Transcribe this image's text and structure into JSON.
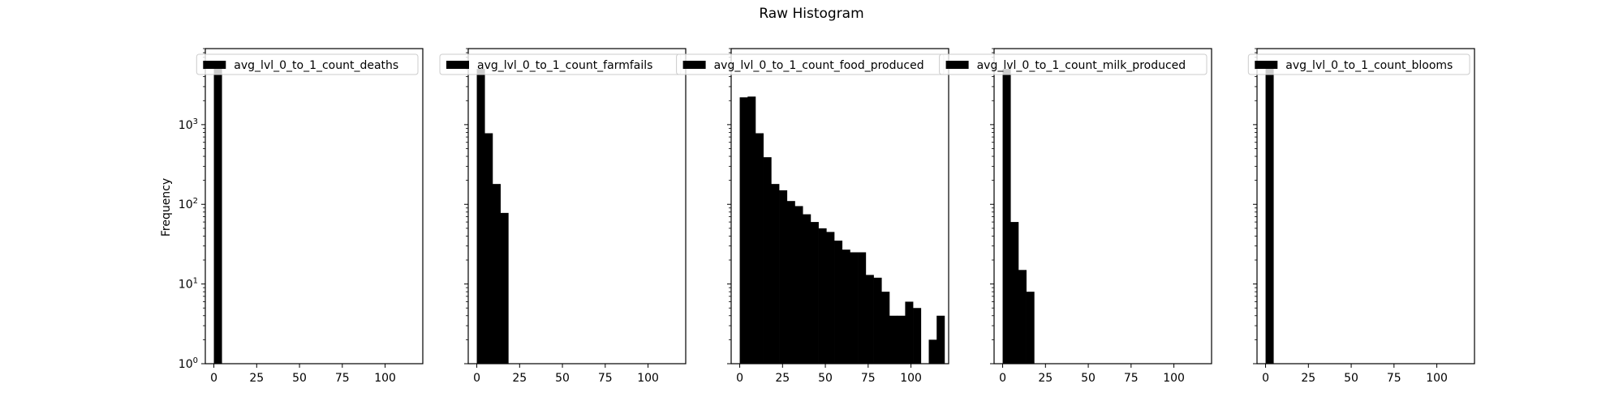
{
  "figure": {
    "title": "Raw Histogram",
    "ylabel": "Frequency"
  },
  "chart_data": [
    {
      "type": "bar",
      "xlabel": "",
      "ylabel": "Frequency",
      "yscale": "log",
      "ylim": [
        1,
        9000
      ],
      "xlim": [
        -5,
        122
      ],
      "x_ticks": [
        "0",
        "25",
        "50",
        "75",
        "100"
      ],
      "y_ticks": [
        "10^0",
        "10^1",
        "10^2",
        "10^3"
      ],
      "bin_width": 4.6,
      "bin_starts": [
        0
      ],
      "values": [
        6000
      ],
      "legend": "avg_lvl_0_to_1_count_deaths",
      "legend_position": "upper right",
      "grid": false
    },
    {
      "type": "bar",
      "xlabel": "",
      "yscale": "log",
      "ylim": [
        1,
        9000
      ],
      "xlim": [
        -5,
        122
      ],
      "x_ticks": [
        "0",
        "25",
        "50",
        "75",
        "100"
      ],
      "y_ticks": [
        "10^0",
        "10^1",
        "10^2",
        "10^3"
      ],
      "bin_width": 4.6,
      "bin_starts": [
        0,
        4.6,
        9.2,
        13.8
      ],
      "values": [
        5000,
        780,
        180,
        78
      ],
      "legend": "avg_lvl_0_to_1_count_farmfails",
      "legend_position": "upper right",
      "grid": false
    },
    {
      "type": "bar",
      "xlabel": "",
      "yscale": "log",
      "ylim": [
        1,
        9000
      ],
      "xlim": [
        -5,
        122
      ],
      "x_ticks": [
        "0",
        "25",
        "50",
        "75",
        "100"
      ],
      "y_ticks": [
        "10^0",
        "10^1",
        "10^2",
        "10^3"
      ],
      "bin_width": 4.6,
      "bin_starts": [
        0,
        4.6,
        9.2,
        13.8,
        18.4,
        23.0,
        27.6,
        32.2,
        36.8,
        41.4,
        46.0,
        50.6,
        55.2,
        59.8,
        64.4,
        69.0,
        73.6,
        78.2,
        82.8,
        87.4,
        92.0,
        96.6,
        101.2,
        105.8,
        110.4,
        115.0
      ],
      "values": [
        2200,
        2250,
        780,
        390,
        180,
        150,
        110,
        95,
        75,
        60,
        50,
        45,
        35,
        27,
        25,
        25,
        13,
        12,
        8,
        4,
        4,
        6,
        5,
        0,
        2,
        4
      ],
      "legend": "avg_lvl_0_to_1_count_food_produced",
      "legend_position": "upper right",
      "grid": false
    },
    {
      "type": "bar",
      "xlabel": "",
      "yscale": "log",
      "ylim": [
        1,
        9000
      ],
      "xlim": [
        -5,
        122
      ],
      "x_ticks": [
        "0",
        "25",
        "50",
        "75",
        "100"
      ],
      "y_ticks": [
        "10^0",
        "10^1",
        "10^2",
        "10^3"
      ],
      "bin_width": 4.6,
      "bin_starts": [
        0,
        4.6,
        9.2,
        13.8
      ],
      "values": [
        5000,
        60,
        15,
        8
      ],
      "legend": "avg_lvl_0_to_1_count_milk_produced",
      "legend_position": "upper right",
      "grid": false
    },
    {
      "type": "bar",
      "xlabel": "",
      "yscale": "log",
      "ylim": [
        1,
        9000
      ],
      "xlim": [
        -5,
        122
      ],
      "x_ticks": [
        "0",
        "25",
        "50",
        "75",
        "100"
      ],
      "y_ticks": [
        "10^0",
        "10^1",
        "10^2",
        "10^3"
      ],
      "bin_width": 4.6,
      "bin_starts": [
        0
      ],
      "values": [
        6000
      ],
      "legend": "avg_lvl_0_to_1_count_blooms",
      "legend_position": "upper right",
      "grid": false
    }
  ]
}
